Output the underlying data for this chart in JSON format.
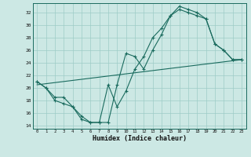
{
  "xlabel": "Humidex (Indice chaleur)",
  "bg_color": "#cce8e4",
  "line_color": "#1a6b5e",
  "grid_color": "#9eccc6",
  "xlim": [
    -0.5,
    23.5
  ],
  "ylim": [
    13.5,
    33.5
  ],
  "xticks": [
    0,
    1,
    2,
    3,
    4,
    5,
    6,
    7,
    8,
    9,
    10,
    11,
    12,
    13,
    14,
    15,
    16,
    17,
    18,
    19,
    20,
    21,
    22,
    23
  ],
  "yticks": [
    14,
    16,
    18,
    20,
    22,
    24,
    26,
    28,
    30,
    32
  ],
  "line1_x": [
    0,
    1,
    2,
    3,
    4,
    5,
    6,
    7,
    8,
    9,
    10,
    11,
    12,
    13,
    14,
    15,
    16,
    17,
    18,
    19,
    20,
    21,
    22,
    23
  ],
  "line1_y": [
    21,
    20,
    18,
    17.5,
    17,
    15,
    14.5,
    14.5,
    20.5,
    17,
    19.5,
    23,
    25,
    28,
    29.5,
    31.5,
    33,
    32.5,
    32,
    31,
    27,
    26,
    24.5,
    24.5
  ],
  "line2_x": [
    0,
    1,
    2,
    3,
    4,
    5,
    6,
    7,
    8,
    9,
    10,
    11,
    12,
    13,
    14,
    15,
    16,
    17,
    18,
    19,
    20,
    21,
    22,
    23
  ],
  "line2_y": [
    21,
    20,
    18.5,
    18.5,
    17,
    15.5,
    14.5,
    14.5,
    14.5,
    20.5,
    25.5,
    25,
    23,
    26,
    28.5,
    31.5,
    32.5,
    32,
    31.5,
    31,
    27,
    26,
    24.5,
    24.5
  ],
  "line3_x": [
    0,
    23
  ],
  "line3_y": [
    20.5,
    24.5
  ]
}
